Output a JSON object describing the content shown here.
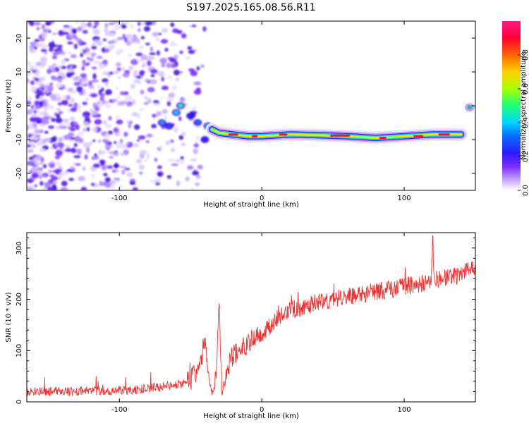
{
  "chart_data": [
    {
      "type": "heatmap",
      "title": "S197.2025.165.08.56.R11",
      "xlabel": "Height of straight line (km)",
      "ylabel": "Frequency (Hz)",
      "xlim": [
        -165,
        150
      ],
      "ylim": [
        -25,
        25
      ],
      "xticks": [
        -100,
        0,
        100
      ],
      "yticks": [
        -20,
        -10,
        0,
        10,
        20
      ],
      "colorbar": {
        "label": "Normalized spectral amplitude",
        "range": [
          0,
          1
        ],
        "ticks": [
          0.0,
          0.2,
          0.4,
          0.6,
          0.8
        ],
        "colormap": "rainbow (white, purple, blue, cyan, green, yellow, orange, red, magenta)"
      },
      "features": {
        "noise_region_km": [
          -165,
          -40
        ],
        "tone_track": {
          "x_km": [
            -35,
            -30,
            -20,
            -10,
            0,
            20,
            40,
            60,
            80,
            100,
            120,
            140
          ],
          "freq_hz": [
            -7,
            -8,
            -8.5,
            -9,
            -9,
            -8.5,
            -8.7,
            -9,
            -9.5,
            -9,
            -8.5,
            -8.5
          ]
        }
      }
    },
    {
      "type": "line",
      "title": "",
      "xlabel": "Height of straight line (km)",
      "ylabel": "SNR (10 * v/v)",
      "xlim": [
        -165,
        150
      ],
      "ylim": [
        0,
        330
      ],
      "xticks": [
        -100,
        0,
        100
      ],
      "yticks": [
        0,
        100,
        200,
        300
      ],
      "color": "#ee3333",
      "series": [
        {
          "x": [
            -165,
            -140,
            -120,
            -100,
            -80,
            -60,
            -50,
            -45,
            -42,
            -40,
            -38,
            -36,
            -34,
            -32,
            -30,
            -28,
            -26,
            -24,
            -20,
            -15,
            -10,
            -5,
            0,
            5,
            10,
            15,
            20,
            25,
            30,
            40,
            50,
            60,
            70,
            80,
            90,
            100,
            110,
            115,
            119,
            120,
            121,
            125,
            130,
            140,
            150
          ],
          "values": [
            20,
            20,
            21,
            22,
            26,
            33,
            42,
            60,
            90,
            120,
            60,
            25,
            15,
            60,
            200,
            20,
            40,
            70,
            90,
            100,
            115,
            125,
            135,
            145,
            160,
            170,
            180,
            182,
            186,
            195,
            200,
            205,
            210,
            215,
            218,
            225,
            230,
            233,
            240,
            330,
            240,
            240,
            242,
            250,
            260
          ]
        }
      ]
    }
  ]
}
